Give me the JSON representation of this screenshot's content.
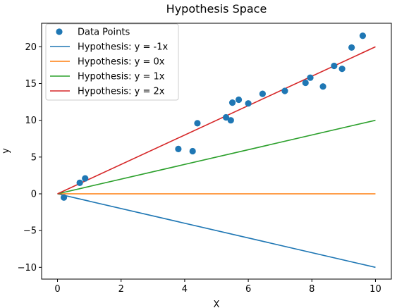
{
  "chart_data": {
    "type": "line",
    "title": "Hypothesis Space",
    "xlabel": "X",
    "ylabel": "y",
    "xlim": [
      -0.5,
      10.5
    ],
    "ylim": [
      -11.6,
      23.2
    ],
    "xticks": [
      0,
      2,
      4,
      6,
      8,
      10
    ],
    "yticks": [
      -10,
      -5,
      0,
      5,
      10,
      15,
      20
    ],
    "xtick_labels": [
      "0",
      "2",
      "4",
      "6",
      "8",
      "10"
    ],
    "ytick_labels": [
      "−10",
      "−5",
      "0",
      "5",
      "10",
      "15",
      "20"
    ],
    "grid": false,
    "legend_position": "top-left",
    "scatter": {
      "name": "Data Points",
      "color": "#1f77b4",
      "points": [
        [
          0.2,
          -0.5
        ],
        [
          0.7,
          1.5
        ],
        [
          0.87,
          2.1
        ],
        [
          3.8,
          6.1
        ],
        [
          4.25,
          5.8
        ],
        [
          4.4,
          9.6
        ],
        [
          5.3,
          10.4
        ],
        [
          5.45,
          10.0
        ],
        [
          5.5,
          12.4
        ],
        [
          5.7,
          12.8
        ],
        [
          6.0,
          12.3
        ],
        [
          6.45,
          13.6
        ],
        [
          7.15,
          14.0
        ],
        [
          7.8,
          15.1
        ],
        [
          7.95,
          15.8
        ],
        [
          8.35,
          14.6
        ],
        [
          8.7,
          17.4
        ],
        [
          8.95,
          17.0
        ],
        [
          9.25,
          19.9
        ],
        [
          9.6,
          21.5
        ]
      ]
    },
    "series": [
      {
        "name": "Hypothesis: y = -1x",
        "color": "#1f77b4",
        "x": [
          0,
          10
        ],
        "y": [
          0,
          -10
        ]
      },
      {
        "name": "Hypothesis: y = 0x",
        "color": "#ff7f0e",
        "x": [
          0,
          10
        ],
        "y": [
          0,
          0
        ]
      },
      {
        "name": "Hypothesis: y = 1x",
        "color": "#2ca02c",
        "x": [
          0,
          10
        ],
        "y": [
          0,
          10
        ]
      },
      {
        "name": "Hypothesis: y = 2x",
        "color": "#d62728",
        "x": [
          0,
          10
        ],
        "y": [
          0,
          20
        ]
      }
    ]
  }
}
